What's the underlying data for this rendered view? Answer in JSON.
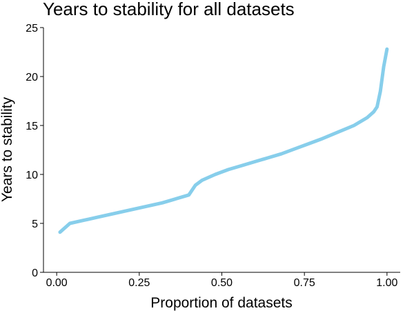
{
  "chart_data": {
    "type": "line",
    "title": "Years to stability for all datasets",
    "xlabel": "Proportion of datasets",
    "ylabel": "Years to stability",
    "xlim": [
      -0.04,
      1.04
    ],
    "ylim": [
      0,
      25
    ],
    "xticks": [
      0,
      0.25,
      0.5,
      0.75,
      1
    ],
    "xtick_labels": [
      "0.00",
      "0.25",
      "0.50",
      "0.75",
      "1.00"
    ],
    "yticks": [
      0,
      5,
      10,
      15,
      20,
      25
    ],
    "ytick_labels": [
      "0",
      "5",
      "10",
      "15",
      "20",
      "25"
    ],
    "grid": false,
    "legend": "none",
    "series": [
      {
        "color": "#87CEEB",
        "x": [
          0.01,
          0.04,
          0.08,
          0.12,
          0.16,
          0.2,
          0.24,
          0.28,
          0.32,
          0.36,
          0.4,
          0.42,
          0.44,
          0.48,
          0.52,
          0.56,
          0.6,
          0.64,
          0.68,
          0.72,
          0.76,
          0.8,
          0.85,
          0.9,
          0.94,
          0.96,
          0.97,
          0.98,
          0.99,
          1.0
        ],
        "y": [
          4.1,
          5.0,
          5.3,
          5.6,
          5.9,
          6.2,
          6.5,
          6.8,
          7.1,
          7.5,
          7.9,
          8.9,
          9.4,
          10.0,
          10.5,
          10.9,
          11.3,
          11.7,
          12.1,
          12.6,
          13.1,
          13.6,
          14.3,
          15.0,
          15.8,
          16.4,
          16.9,
          18.5,
          21.0,
          22.8
        ]
      }
    ]
  }
}
